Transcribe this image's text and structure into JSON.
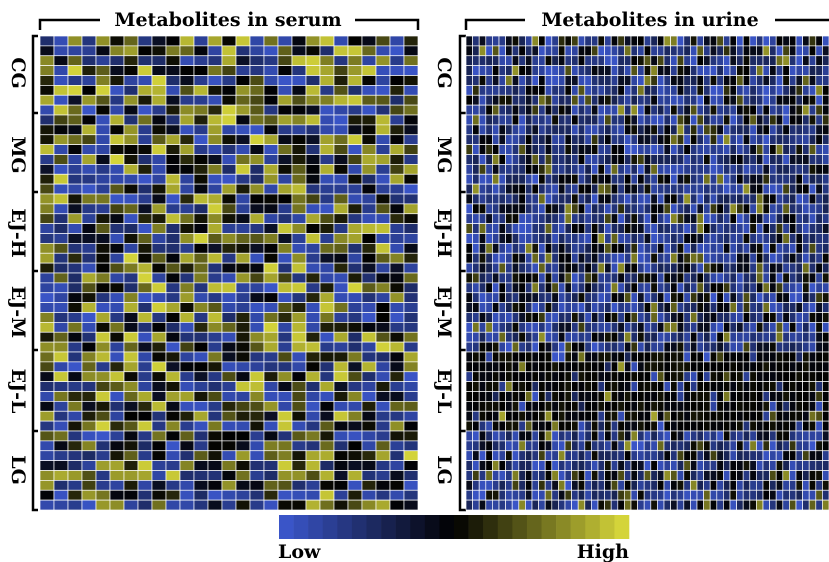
{
  "chart_data": [
    {
      "type": "heatmap",
      "title": "Metabolites in serum",
      "row_groups": [
        "CG",
        "MG",
        "EJ-H",
        "EJ-M",
        "EJ-L",
        "LG"
      ],
      "rows_per_group": 8,
      "columns": 27,
      "values": "approximate: random-looking low-to-high intensities; serum panel shows many high (yellow) cells"
    },
    {
      "type": "heatmap",
      "title": "Metabolites in urine",
      "row_groups": [
        "CG",
        "MG",
        "EJ-H",
        "EJ-M",
        "EJ-L",
        "LG"
      ],
      "rows_per_group": 8,
      "columns": 55,
      "values": "approximate: mostly low/mid (blue-black) cells, EJ-L group predominantly mid (black)"
    }
  ],
  "color_scale": {
    "low_label": "Low",
    "high_label": "High",
    "low_color": "#3a55c8",
    "mid_color": "#000000",
    "high_color": "#d4d43a"
  }
}
